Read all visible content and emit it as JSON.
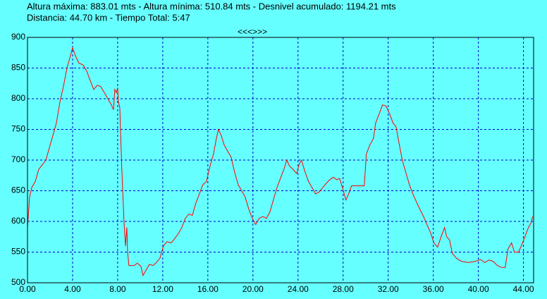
{
  "header": {
    "line1": "Altura máxima: 883.01 mts - Altura mínima: 510.84 mts - Desnivel acumulado: 1194.21 mts",
    "line2": "Distancia: 44.70 km - Tiempo Total: 5:47",
    "nav": "<<<>>>"
  },
  "chart_data": {
    "type": "line",
    "grid": true,
    "xlim": [
      0,
      44.9
    ],
    "ylim": [
      500,
      900
    ],
    "xticks": [
      {
        "value": 0,
        "label": "0.00"
      },
      {
        "value": 4,
        "label": "4.00"
      },
      {
        "value": 8,
        "label": "8.00"
      },
      {
        "value": 12,
        "label": "12.00"
      },
      {
        "value": 16,
        "label": "16.00"
      },
      {
        "value": 20,
        "label": "20.00"
      },
      {
        "value": 24,
        "label": "24.00"
      },
      {
        "value": 28,
        "label": "28.00"
      },
      {
        "value": 32,
        "label": "32.00"
      },
      {
        "value": 36,
        "label": "36.00"
      },
      {
        "value": 40,
        "label": "40.00"
      },
      {
        "value": 44,
        "label": "44.00"
      }
    ],
    "yticks": [
      500,
      550,
      600,
      650,
      700,
      750,
      800,
      850,
      900
    ],
    "x": [
      0,
      0.19,
      0.375,
      0.69,
      1.0,
      1.31,
      1.63,
      1.94,
      2.25,
      2.56,
      2.88,
      3.19,
      3.5,
      3.81,
      4.0,
      4.25,
      4.56,
      4.94,
      5.25,
      5.56,
      5.88,
      6.19,
      6.5,
      6.81,
      7.13,
      7.44,
      7.63,
      7.75,
      7.88,
      8.0,
      8.06,
      8.19,
      8.25,
      8.38,
      8.56,
      8.69,
      8.81,
      8.88,
      9.0,
      9.44,
      9.75,
      10.06,
      10.25,
      10.5,
      10.81,
      11.13,
      11.44,
      11.75,
      12.06,
      12.38,
      12.75,
      13.06,
      13.38,
      13.69,
      14.0,
      14.31,
      14.63,
      14.94,
      15.25,
      15.56,
      15.88,
      16.19,
      16.5,
      16.75,
      16.94,
      17.19,
      17.44,
      17.75,
      18.06,
      18.38,
      18.69,
      19.0,
      19.31,
      19.63,
      19.94,
      20.25,
      20.56,
      20.88,
      21.19,
      21.5,
      21.81,
      22.13,
      22.44,
      22.75,
      23.0,
      23.25,
      23.56,
      23.88,
      24.13,
      24.31,
      24.63,
      24.94,
      25.25,
      25.56,
      25.88,
      26.19,
      26.5,
      26.81,
      27.13,
      27.44,
      27.69,
      27.94,
      28.25,
      28.5,
      28.75,
      29.88,
      30.06,
      30.38,
      30.69,
      30.88,
      31.19,
      31.5,
      31.81,
      32.13,
      32.44,
      32.69,
      32.94,
      33.25,
      33.56,
      33.88,
      34.19,
      34.5,
      34.81,
      35.13,
      35.44,
      35.75,
      36.06,
      36.38,
      36.69,
      37.0,
      37.19,
      37.44,
      37.69,
      38.06,
      38.5,
      39.13,
      39.75,
      40.19,
      40.56,
      40.94,
      41.31,
      41.69,
      42.06,
      42.38,
      42.63,
      42.94,
      43.19,
      43.56,
      43.81,
      44.13,
      44.44,
      44.69,
      44.81
    ],
    "series": [
      {
        "color": "#ff0000",
        "values": [
          590,
          640,
          655,
          665,
          685,
          692,
          700,
          720,
          740,
          760,
          795,
          820,
          850,
          870,
          883,
          870,
          858,
          855,
          845,
          830,
          815,
          822,
          820,
          810,
          800,
          790,
          782,
          815,
          810,
          818,
          795,
          785,
          750,
          680,
          600,
          560,
          590,
          550,
          528,
          528,
          532,
          527,
          512,
          520,
          530,
          528,
          533,
          540,
          560,
          567,
          565,
          572,
          580,
          590,
          605,
          612,
          610,
          630,
          645,
          660,
          665,
          690,
          710,
          735,
          750,
          740,
          725,
          715,
          705,
          680,
          660,
          650,
          640,
          620,
          605,
          595,
          605,
          608,
          605,
          615,
          635,
          655,
          670,
          685,
          700,
          690,
          685,
          678,
          695,
          700,
          680,
          665,
          655,
          645,
          648,
          655,
          662,
          668,
          672,
          668,
          670,
          655,
          635,
          645,
          658,
          658,
          710,
          725,
          735,
          760,
          775,
          790,
          788,
          775,
          760,
          755,
          730,
          700,
          680,
          660,
          645,
          632,
          620,
          608,
          595,
          582,
          565,
          558,
          575,
          590,
          575,
          570,
          548,
          540,
          535,
          533,
          535,
          538,
          533,
          537,
          535,
          528,
          525,
          525,
          555,
          565,
          550,
          550,
          560,
          575,
          590,
          598,
          608
        ]
      }
    ]
  }
}
